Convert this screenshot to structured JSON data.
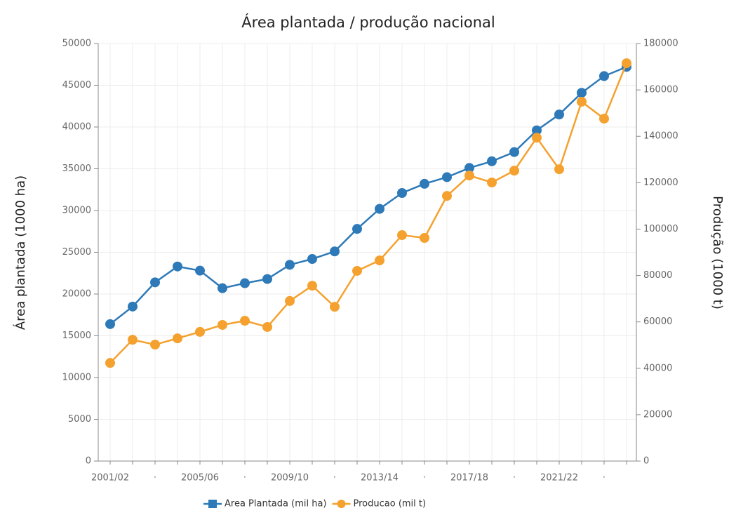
{
  "chart_data": {
    "type": "line",
    "title": "Área plantada / produção nacional",
    "y_label": "Área plantada (1000 ha)",
    "y2_label": "Produção (1000 t)",
    "categories": [
      "2001/02",
      null,
      "·",
      null,
      "2005/06",
      null,
      "·",
      null,
      "2009/10",
      null,
      "·",
      null,
      "2013/14",
      null,
      "·",
      null,
      "2017/18",
      null,
      "·",
      null,
      "2021/22",
      null,
      "·",
      null
    ],
    "series": [
      {
        "name": "Area Plantada (mil ha)",
        "color": "#2e7ab8",
        "marker": "square",
        "values": [
          16400,
          18500,
          21400,
          23300,
          22800,
          20700,
          21300,
          21800,
          23500,
          24200,
          25100,
          27800,
          30200,
          32100,
          33200,
          34000,
          35100,
          35900,
          37000,
          39600,
          41500,
          44100,
          46100,
          47200
        ]
      },
      {
        "name": "Producao (mil t)",
        "color": "#f5a12f",
        "marker": "circle",
        "axis": "y2",
        "values": [
          42300,
          52300,
          50200,
          52900,
          55700,
          58700,
          60500,
          57800,
          69000,
          75600,
          66500,
          82000,
          86500,
          97400,
          96200,
          114300,
          123100,
          120100,
          125200,
          139400,
          125800,
          154900,
          147600,
          171500
        ]
      }
    ],
    "ylim": [
      0,
      50000
    ],
    "yticks": [
      0,
      5000,
      10000,
      15000,
      20000,
      25000,
      30000,
      35000,
      40000,
      45000,
      50000
    ],
    "y2lim": [
      0,
      180000
    ],
    "y2ticks": [
      0,
      20000,
      40000,
      60000,
      80000,
      100000,
      120000,
      140000,
      160000,
      180000
    ],
    "grid": true,
    "legend": "bottom"
  }
}
